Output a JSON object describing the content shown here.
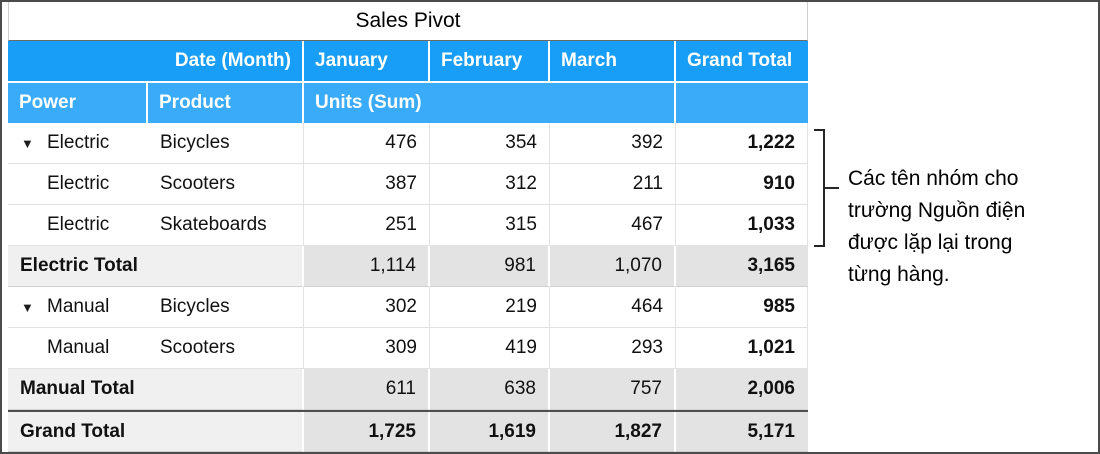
{
  "title": "Sales Pivot",
  "header": {
    "date_month": "Date (Month)",
    "months": [
      "January",
      "February",
      "March"
    ],
    "grand_total": "Grand Total",
    "power": "Power",
    "product": "Product",
    "units": "Units (Sum)"
  },
  "rows": [
    {
      "power": "Electric",
      "product": "Bicycles",
      "disclosure": "▼",
      "values": [
        "476",
        "354",
        "392"
      ],
      "total": "1,222"
    },
    {
      "power": "Electric",
      "product": "Scooters",
      "values": [
        "387",
        "312",
        "211"
      ],
      "total": "910"
    },
    {
      "power": "Electric",
      "product": "Skateboards",
      "values": [
        "251",
        "315",
        "467"
      ],
      "total": "1,033"
    },
    {
      "label": "Electric Total",
      "values": [
        "1,114",
        "981",
        "1,070"
      ],
      "total": "3,165"
    },
    {
      "power": "Manual",
      "product": "Bicycles",
      "disclosure": "▼",
      "values": [
        "302",
        "219",
        "464"
      ],
      "total": "985"
    },
    {
      "power": "Manual",
      "product": "Scooters",
      "values": [
        "309",
        "419",
        "293"
      ],
      "total": "1,021"
    },
    {
      "label": "Manual Total",
      "values": [
        "611",
        "638",
        "757"
      ],
      "total": "2,006"
    },
    {
      "label": "Grand Total",
      "values": [
        "1,725",
        "1,619",
        "1,827"
      ],
      "total": "5,171"
    }
  ],
  "annotation": {
    "lines": [
      "Các tên nhóm cho",
      "trường Nguồn điện",
      "được lặp lại trong",
      "từng hàng."
    ]
  },
  "colors": {
    "header_blue": "#189ef7",
    "header_blue_light": "#3aabf9",
    "subtotal_gray": "#e3e3e3",
    "frame_border": "#4b4b4b"
  }
}
